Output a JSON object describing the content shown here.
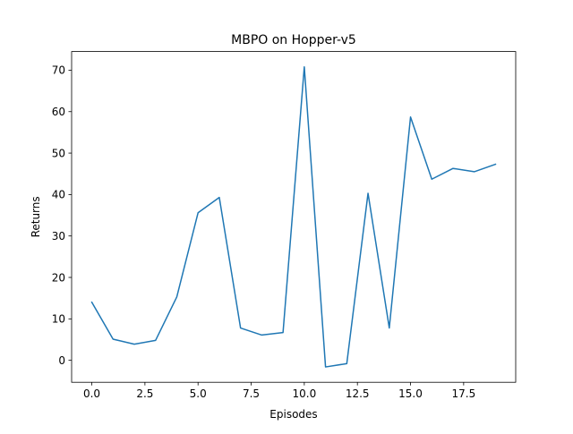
{
  "chart_data": {
    "type": "line",
    "title": "MBPO on Hopper-v5",
    "xlabel": "Episodes",
    "ylabel": "Returns",
    "xlim": [
      -0.95,
      19.95
    ],
    "ylim": [
      -5.3,
      74.5
    ],
    "xticks": [
      0.0,
      2.5,
      5.0,
      7.5,
      10.0,
      12.5,
      15.0,
      17.5
    ],
    "xtick_labels": [
      "0.0",
      "2.5",
      "5.0",
      "7.5",
      "10.0",
      "12.5",
      "15.0",
      "17.5"
    ],
    "yticks": [
      0,
      10,
      20,
      30,
      40,
      50,
      60,
      70
    ],
    "ytick_labels": [
      "0",
      "10",
      "20",
      "30",
      "40",
      "50",
      "60",
      "70"
    ],
    "grid": false,
    "line_color": "#1f77b4",
    "series": [
      {
        "x": [
          0,
          1,
          2,
          3,
          4,
          5,
          6,
          7,
          8,
          9,
          10,
          11,
          12,
          13,
          14,
          15,
          16,
          17,
          18,
          19
        ],
        "values": [
          14.0,
          5.1,
          3.9,
          4.8,
          15.3,
          35.6,
          39.3,
          7.8,
          6.1,
          6.7,
          70.8,
          -1.6,
          -0.8,
          40.3,
          7.8,
          58.7,
          43.7,
          46.3,
          45.5,
          47.3
        ]
      }
    ]
  }
}
